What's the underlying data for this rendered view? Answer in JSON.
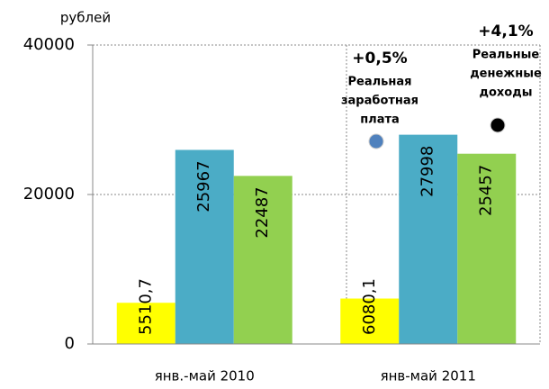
{
  "chart_data": {
    "type": "bar",
    "ylabel": "рублей",
    "categories": [
      "янв.-май 2010",
      "янв-май 2011"
    ],
    "series": [
      {
        "color": "#ffff00",
        "values": [
          5510.7,
          6080.1
        ],
        "value_labels": [
          "5510,7",
          "6080,1"
        ]
      },
      {
        "color": "#4bacc6",
        "values": [
          25967,
          27998
        ],
        "value_labels": [
          "25967",
          "27998"
        ]
      },
      {
        "color": "#92d050",
        "values": [
          22487,
          25457
        ],
        "value_labels": [
          "22487",
          "25457"
        ]
      }
    ],
    "ylim": [
      0,
      40000
    ],
    "yticks": [
      0,
      20000,
      40000
    ],
    "grid": true,
    "annotations": [
      {
        "change": "+0,5%",
        "label": [
          "Реальная",
          "заработная",
          "плата"
        ],
        "color": "#4f81bd"
      },
      {
        "change": "+4,1%",
        "label": [
          "Реальные",
          "денежные",
          "доходы"
        ],
        "color": "#000000"
      }
    ]
  }
}
